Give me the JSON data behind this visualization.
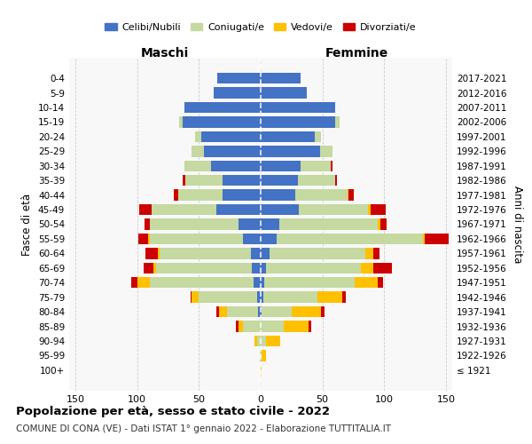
{
  "age_groups": [
    "100+",
    "95-99",
    "90-94",
    "85-89",
    "80-84",
    "75-79",
    "70-74",
    "65-69",
    "60-64",
    "55-59",
    "50-54",
    "45-49",
    "40-44",
    "35-39",
    "30-34",
    "25-29",
    "20-24",
    "15-19",
    "10-14",
    "5-9",
    "0-4"
  ],
  "birth_years": [
    "≤ 1921",
    "1922-1926",
    "1927-1931",
    "1932-1936",
    "1937-1941",
    "1942-1946",
    "1947-1951",
    "1952-1956",
    "1957-1961",
    "1962-1966",
    "1967-1971",
    "1972-1976",
    "1977-1981",
    "1982-1986",
    "1987-1991",
    "1992-1996",
    "1997-2001",
    "2002-2006",
    "2007-2011",
    "2012-2016",
    "2017-2021"
  ],
  "male_celibinubili": [
    0,
    0,
    0,
    0,
    2,
    3,
    6,
    7,
    8,
    14,
    18,
    36,
    31,
    31,
    40,
    46,
    48,
    63,
    62,
    38,
    35
  ],
  "male_coniugati": [
    0,
    1,
    3,
    14,
    25,
    47,
    84,
    78,
    74,
    76,
    72,
    52,
    36,
    30,
    22,
    10,
    5,
    3,
    0,
    0,
    0
  ],
  "male_vedovi": [
    0,
    0,
    2,
    4,
    7,
    6,
    10,
    2,
    1,
    1,
    0,
    0,
    0,
    0,
    0,
    0,
    0,
    0,
    0,
    0,
    0
  ],
  "male_divorziati": [
    0,
    0,
    0,
    2,
    2,
    1,
    5,
    8,
    10,
    8,
    4,
    10,
    3,
    2,
    0,
    0,
    0,
    0,
    0,
    0,
    0
  ],
  "female_celibinubili": [
    0,
    0,
    0,
    0,
    1,
    2,
    3,
    4,
    7,
    13,
    15,
    31,
    28,
    30,
    32,
    48,
    44,
    60,
    60,
    37,
    32
  ],
  "female_coniugati": [
    0,
    1,
    4,
    19,
    24,
    44,
    73,
    77,
    78,
    118,
    80,
    56,
    42,
    30,
    25,
    10,
    5,
    4,
    0,
    0,
    0
  ],
  "female_vedovi": [
    1,
    3,
    12,
    20,
    24,
    20,
    19,
    10,
    6,
    2,
    2,
    2,
    1,
    0,
    0,
    0,
    0,
    0,
    0,
    0,
    0
  ],
  "female_divorziati": [
    0,
    0,
    0,
    2,
    3,
    3,
    4,
    15,
    5,
    19,
    5,
    12,
    4,
    2,
    1,
    0,
    0,
    0,
    0,
    0,
    0
  ],
  "colors": {
    "celibinubili": "#4472c4",
    "coniugati": "#c5d9a0",
    "vedovi": "#ffc000",
    "divorziati": "#cc0000"
  },
  "title": "Popolazione per età, sesso e stato civile - 2022",
  "subtitle": "COMUNE DI CONA (VE) - Dati ISTAT 1° gennaio 2022 - Elaborazione TUTTITALIA.IT",
  "xlabel_left": "Maschi",
  "xlabel_right": "Femmine",
  "ylabel_left": "Fasce di età",
  "ylabel_right": "Anni di nascita",
  "xlim": 155,
  "background_color": "#f8f8f8",
  "grid_color": "#cccccc"
}
